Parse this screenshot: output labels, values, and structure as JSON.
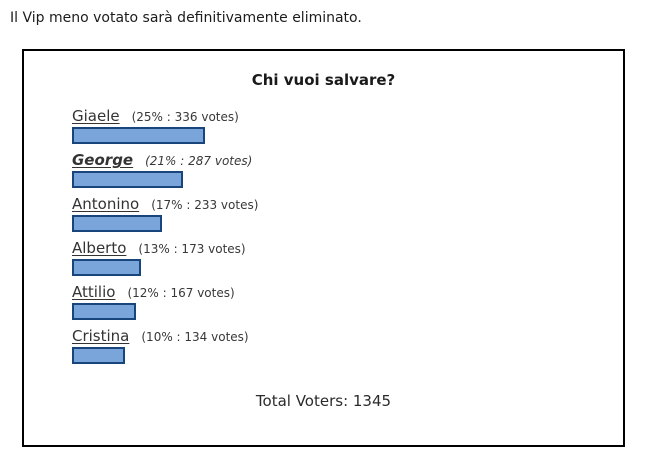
{
  "page": {
    "header_text": "Il Vip meno votato sarà definitivamente eliminato."
  },
  "poll": {
    "title": "Chi vuoi salvare?",
    "options": [
      {
        "name": "Giaele",
        "percent": 25,
        "votes": 336,
        "detail": "(25% : 336 votes)",
        "voted": false
      },
      {
        "name": "George",
        "percent": 21,
        "votes": 287,
        "detail": "(21% : 287 votes)",
        "voted": true
      },
      {
        "name": "Antonino",
        "percent": 17,
        "votes": 233,
        "detail": "(17% : 233 votes)",
        "voted": false
      },
      {
        "name": "Alberto",
        "percent": 13,
        "votes": 173,
        "detail": "(13% : 173 votes)",
        "voted": false
      },
      {
        "name": "Attilio",
        "percent": 12,
        "votes": 167,
        "detail": "(12% : 167 votes)",
        "voted": false
      },
      {
        "name": "Cristina",
        "percent": 10,
        "votes": 134,
        "detail": "(10% : 134 votes)",
        "voted": false
      }
    ],
    "total_voters_label": "Total Voters: 1345",
    "total_voters": 1345,
    "bar_fill_color": "#7aa5db",
    "bar_border_color": "#17457c",
    "box_border_color": "#000000"
  },
  "chart_data": {
    "type": "bar",
    "orientation": "horizontal",
    "title": "Chi vuoi salvare?",
    "categories": [
      "Giaele",
      "George",
      "Antonino",
      "Alberto",
      "Attilio",
      "Cristina"
    ],
    "series": [
      {
        "name": "percent",
        "values": [
          25,
          21,
          17,
          13,
          12,
          10
        ]
      },
      {
        "name": "votes",
        "values": [
          336,
          287,
          233,
          173,
          167,
          134
        ]
      }
    ],
    "data_labels": [
      "(25% : 336 votes)",
      "(21% : 287 votes)",
      "(17% : 233 votes)",
      "(13% : 173 votes)",
      "(12% : 167 votes)",
      "(10% : 134 votes)"
    ],
    "annotations": [
      "Total Voters: 1345"
    ],
    "xlabel": "",
    "ylabel": "",
    "xlim": [
      0,
      100
    ],
    "grid": false,
    "legend": false,
    "bar_color": "#7aa5db"
  }
}
